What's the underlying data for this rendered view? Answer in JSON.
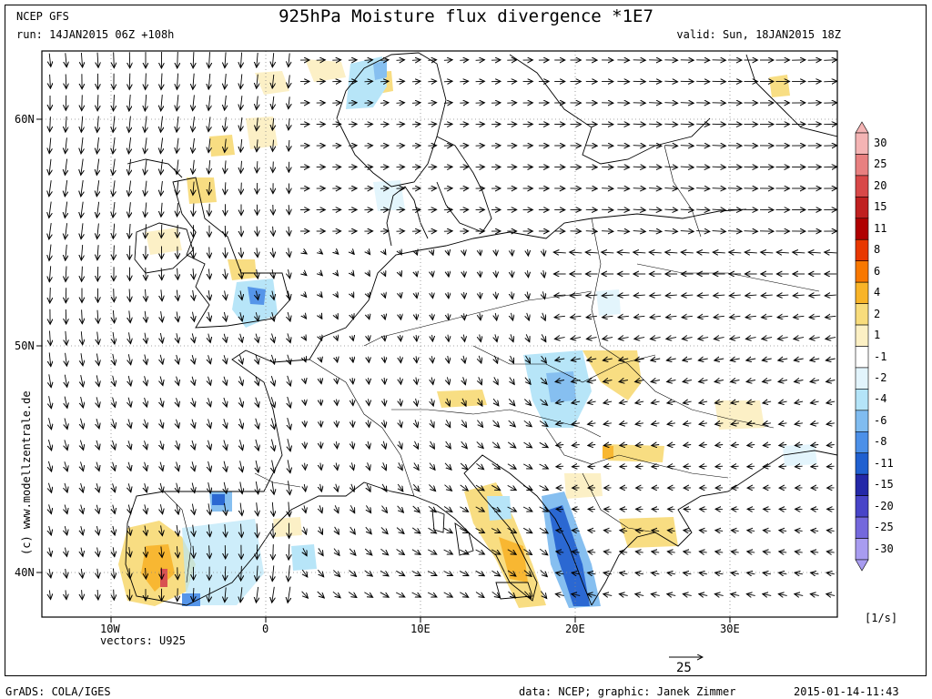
{
  "header": {
    "model": "NCEP GFS",
    "title": "925hPa Moisture flux divergence *1E7",
    "run": "run: 14JAN2015 06Z +108h",
    "valid": "valid: Sun, 18JAN2015 18Z"
  },
  "map": {
    "region": "Europe",
    "lat_labels": [
      "60N",
      "50N",
      "40N"
    ],
    "lon_labels": [
      "10W",
      "0",
      "10E",
      "20E",
      "30E"
    ],
    "vectors_label": "vectors: U925",
    "reference_vector": "25",
    "credit": "(c) www.modellzentrale.de"
  },
  "colorbar": {
    "levels": [
      "30",
      "25",
      "20",
      "15",
      "11",
      "8",
      "6",
      "4",
      "2",
      "1",
      "-1",
      "-2",
      "-4",
      "-6",
      "-8",
      "-11",
      "-15",
      "-20",
      "-25",
      "-30"
    ],
    "colors": [
      "#f4b4b4",
      "#e88080",
      "#d84848",
      "#c02020",
      "#b00000",
      "#e83800",
      "#f87800",
      "#f8b428",
      "#f8dc7c",
      "#fcf0c4",
      "#ffffff",
      "#e2f4fc",
      "#b4e4f8",
      "#80bcf0",
      "#4c90e8",
      "#2060d0",
      "#2428a8",
      "#4844c8",
      "#7468dc",
      "#a89cf0"
    ],
    "unit": "[1/s]"
  },
  "footer": {
    "left": "GrADS: COLA/IGES",
    "center": "data: NCEP; graphic: Janek Zimmer",
    "right": "2015-01-14-11:43"
  }
}
